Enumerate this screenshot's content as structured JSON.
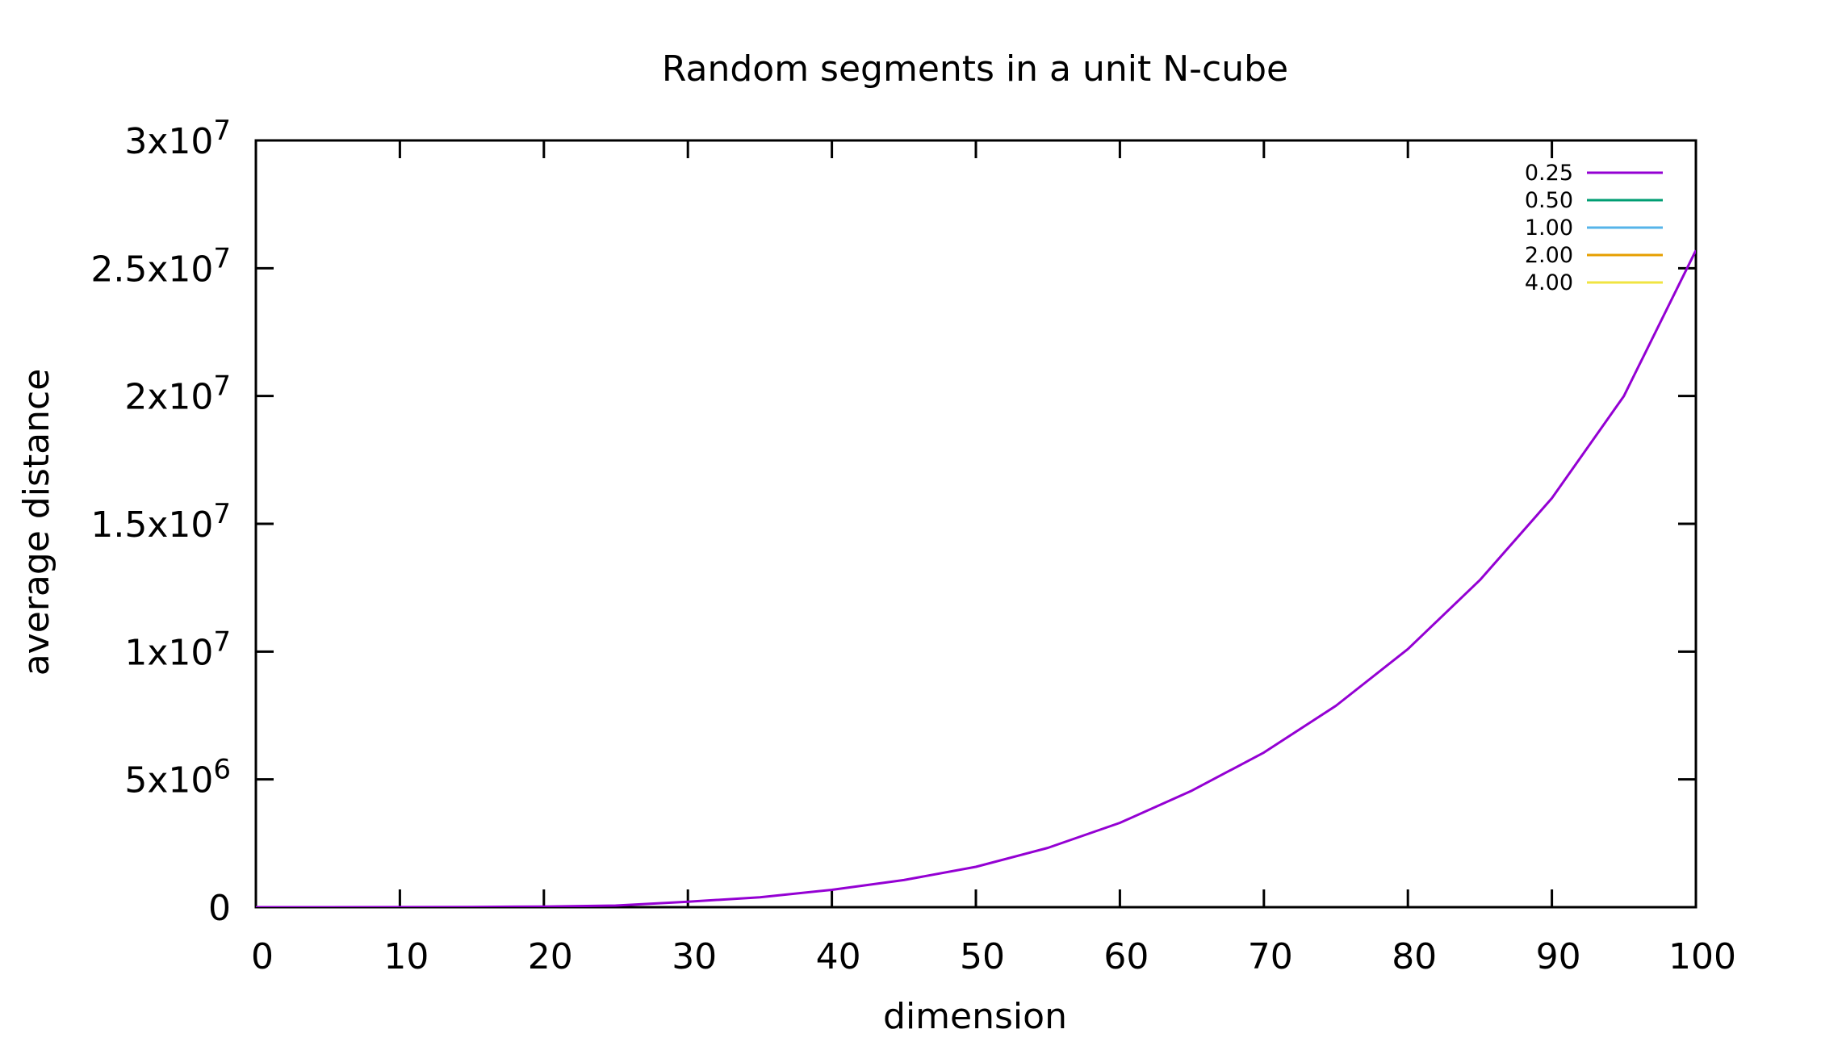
{
  "chart_data": {
    "type": "line",
    "title": "Random segments in a unit N-cube",
    "xlabel": "dimension",
    "ylabel": "average distance",
    "xlim": [
      0,
      100
    ],
    "ylim": [
      0,
      30000000
    ],
    "x_ticks": [
      {
        "value": 0,
        "label": "0"
      },
      {
        "value": 10,
        "label": "10"
      },
      {
        "value": 20,
        "label": "20"
      },
      {
        "value": 30,
        "label": "30"
      },
      {
        "value": 40,
        "label": "40"
      },
      {
        "value": 50,
        "label": "50"
      },
      {
        "value": 60,
        "label": "60"
      },
      {
        "value": 70,
        "label": "70"
      },
      {
        "value": 80,
        "label": "80"
      },
      {
        "value": 90,
        "label": "90"
      },
      {
        "value": 100,
        "label": "100"
      }
    ],
    "y_ticks": [
      {
        "value": 0,
        "base": "0",
        "exp": ""
      },
      {
        "value": 5000000,
        "base": "5x10",
        "exp": "6"
      },
      {
        "value": 10000000,
        "base": "1x10",
        "exp": "7"
      },
      {
        "value": 15000000,
        "base": "1.5x10",
        "exp": "7"
      },
      {
        "value": 20000000,
        "base": "2x10",
        "exp": "7"
      },
      {
        "value": 25000000,
        "base": "2.5x10",
        "exp": "7"
      },
      {
        "value": 30000000,
        "base": "3x10",
        "exp": "7"
      }
    ],
    "grid": false,
    "legend_position": "top-right",
    "series": [
      {
        "name": "0.25",
        "color": "#9400d3",
        "x": [
          0,
          5,
          10,
          15,
          20,
          25,
          30,
          35,
          40,
          45,
          50,
          55,
          60,
          65,
          70,
          75,
          80,
          85,
          90,
          95,
          100
        ],
        "y": [
          0,
          100,
          1600,
          8100,
          25600,
          62500,
          210000,
          390000,
          680000,
          1060000,
          1580000,
          2320000,
          3300000,
          4560000,
          6050000,
          7880000,
          10100000,
          12800000,
          16000000,
          20000000,
          25700000
        ]
      },
      {
        "name": "0.50",
        "color": "#009e73",
        "x": [],
        "y": []
      },
      {
        "name": "1.00",
        "color": "#56b4e9",
        "x": [],
        "y": []
      },
      {
        "name": "2.00",
        "color": "#e69f00",
        "x": [],
        "y": []
      },
      {
        "name": "4.00",
        "color": "#f0e442",
        "x": [],
        "y": []
      }
    ]
  }
}
